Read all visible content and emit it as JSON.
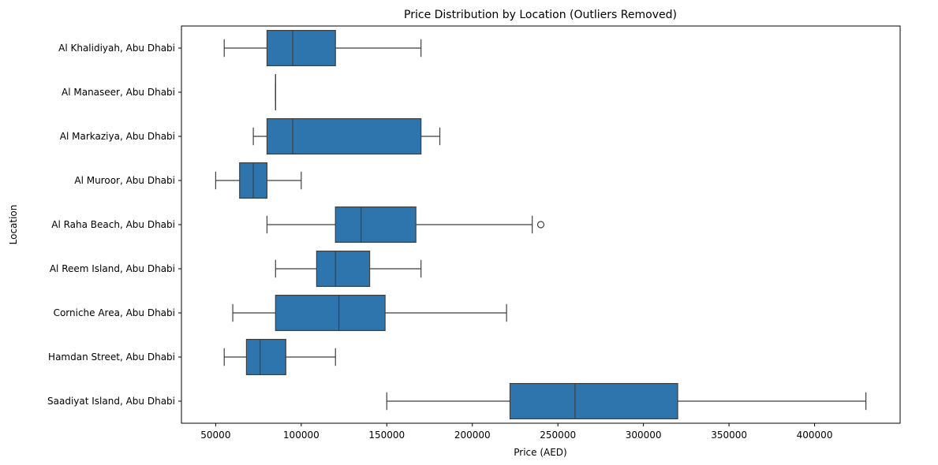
{
  "chart_data": {
    "type": "boxplot",
    "orientation": "horizontal",
    "title": "Price Distribution by Location (Outliers Removed)",
    "xlabel": "Price (AED)",
    "ylabel": "Location",
    "xlim": [
      30000,
      450000
    ],
    "xticks": [
      50000,
      100000,
      150000,
      200000,
      250000,
      300000,
      350000,
      400000
    ],
    "grid": false,
    "legend": "none",
    "box_color": "#2f75ad",
    "line_color": "#3f3f3f",
    "categories": [
      "Al Khalidiyah, Abu Dhabi",
      "Al Manaseer, Abu Dhabi",
      "Al Markaziya, Abu Dhabi",
      "Al Muroor, Abu Dhabi",
      "Al Raha Beach, Abu Dhabi",
      "Al Reem Island, Abu Dhabi",
      "Corniche Area, Abu Dhabi",
      "Hamdan Street, Abu Dhabi",
      "Saadiyat Island, Abu Dhabi"
    ],
    "boxes": [
      {
        "whislo": 55000,
        "q1": 80000,
        "med": 95000,
        "q3": 120000,
        "whishi": 170000,
        "fliers": []
      },
      {
        "whislo": 85000,
        "q1": 85000,
        "med": 85000,
        "q3": 85000,
        "whishi": 85000,
        "fliers": []
      },
      {
        "whislo": 72000,
        "q1": 80000,
        "med": 95000,
        "q3": 170000,
        "whishi": 181000,
        "fliers": []
      },
      {
        "whislo": 50000,
        "q1": 64000,
        "med": 72000,
        "q3": 80000,
        "whishi": 100000,
        "fliers": []
      },
      {
        "whislo": 80000,
        "q1": 120000,
        "med": 135000,
        "q3": 167000,
        "whishi": 235000,
        "fliers": [
          240000
        ]
      },
      {
        "whislo": 85000,
        "q1": 109000,
        "med": 120000,
        "q3": 140000,
        "whishi": 170000,
        "fliers": []
      },
      {
        "whislo": 60000,
        "q1": 85000,
        "med": 122000,
        "q3": 149000,
        "whishi": 220000,
        "fliers": []
      },
      {
        "whislo": 55000,
        "q1": 68000,
        "med": 76000,
        "q3": 91000,
        "whishi": 120000,
        "fliers": []
      },
      {
        "whislo": 150000,
        "q1": 222000,
        "med": 260000,
        "q3": 320000,
        "whishi": 430000,
        "fliers": []
      }
    ]
  }
}
